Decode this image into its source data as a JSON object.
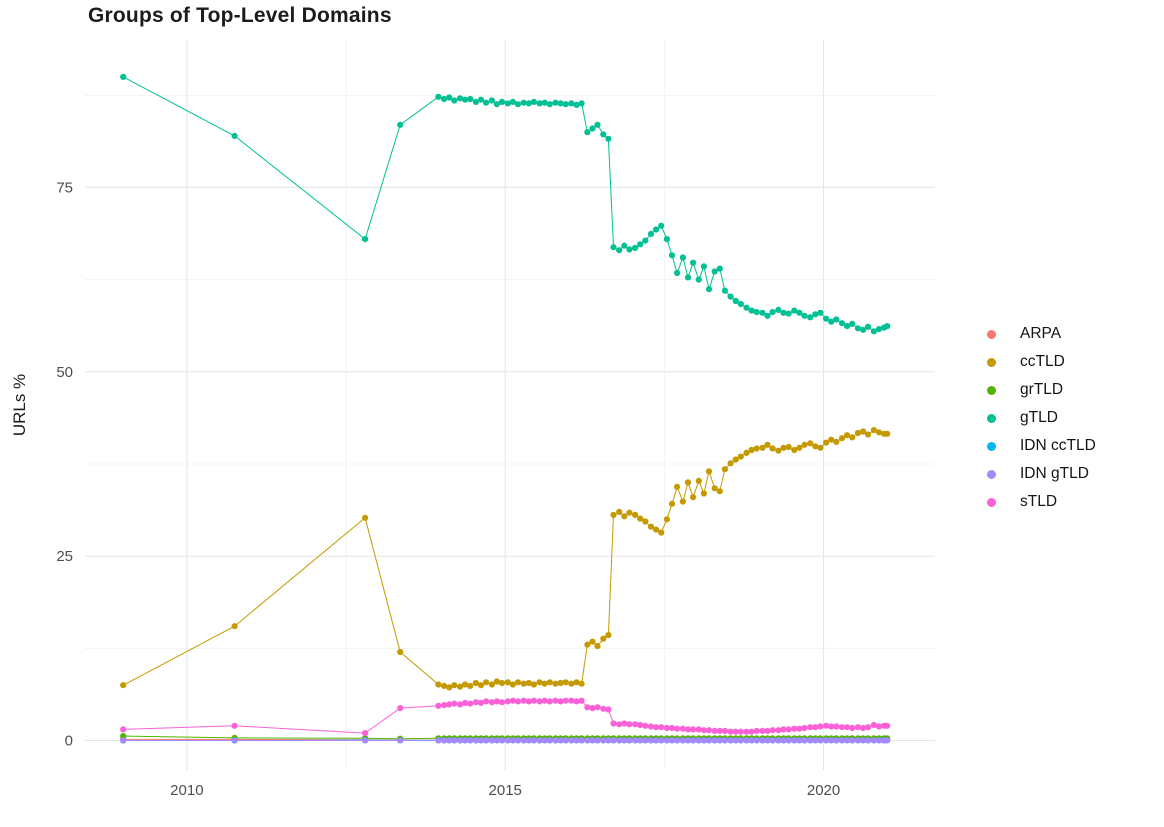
{
  "chart_data": {
    "type": "line",
    "title": "Groups of Top-Level Domains",
    "xlabel": "",
    "ylabel": "URLs %",
    "xlim": [
      2008.4,
      2021.75
    ],
    "ylim": [
      -4,
      95
    ],
    "x_ticks": [
      2010,
      2015,
      2020
    ],
    "x_minor": [
      2012.5,
      2017.5
    ],
    "y_ticks": [
      0,
      25,
      50,
      75
    ],
    "y_minor": [
      12.5,
      37.5,
      62.5,
      87.5
    ],
    "grid": true,
    "legend_position": "right",
    "x": [
      2009.0,
      2010.75,
      2012.8,
      2013.35,
      2013.95,
      2014.04,
      2014.12,
      2014.2,
      2014.29,
      2014.37,
      2014.45,
      2014.54,
      2014.62,
      2014.7,
      2014.79,
      2014.87,
      2014.95,
      2015.04,
      2015.12,
      2015.2,
      2015.29,
      2015.37,
      2015.45,
      2015.54,
      2015.62,
      2015.7,
      2015.79,
      2015.87,
      2015.95,
      2016.04,
      2016.12,
      2016.2,
      2016.29,
      2016.37,
      2016.45,
      2016.54,
      2016.62,
      2016.7,
      2016.79,
      2016.87,
      2016.95,
      2017.04,
      2017.12,
      2017.2,
      2017.29,
      2017.37,
      2017.45,
      2017.54,
      2017.62,
      2017.7,
      2017.79,
      2017.87,
      2017.95,
      2018.04,
      2018.12,
      2018.2,
      2018.29,
      2018.37,
      2018.45,
      2018.54,
      2018.62,
      2018.7,
      2018.79,
      2018.87,
      2018.95,
      2019.04,
      2019.12,
      2019.2,
      2019.29,
      2019.37,
      2019.45,
      2019.54,
      2019.62,
      2019.7,
      2019.79,
      2019.87,
      2019.95,
      2020.04,
      2020.12,
      2020.2,
      2020.29,
      2020.37,
      2020.45,
      2020.54,
      2020.62,
      2020.7,
      2020.79,
      2020.87,
      2020.95,
      2021.0
    ],
    "series": [
      {
        "name": "ARPA",
        "color": "#F8766D",
        "values": [
          0.15,
          0.15,
          0.1,
          0.05,
          0.05,
          0.05,
          0.05,
          0.05,
          0.05,
          0.05,
          0.05,
          0.05,
          0.05,
          0.05,
          0.05,
          0.05,
          0.05,
          0.05,
          0.05,
          0.05,
          0.05,
          0.05,
          0.05,
          0.05,
          0.05,
          0.05,
          0.05,
          0.05,
          0.05,
          0.05,
          0.05,
          0.05,
          0.05,
          0.05,
          0.05,
          0.05,
          0.05,
          0.05,
          0.05,
          0.05,
          0.05,
          0.05,
          0.05,
          0.05,
          0.05,
          0.05,
          0.05,
          0.05,
          0.05,
          0.05,
          0.05,
          0.05,
          0.05,
          0.05,
          0.05,
          0.05,
          0.05,
          0.05,
          0.05,
          0.05,
          0.05,
          0.05,
          0.05,
          0.05,
          0.05,
          0.05,
          0.05,
          0.05,
          0.05,
          0.05,
          0.05,
          0.05,
          0.05,
          0.05,
          0.05,
          0.05,
          0.05,
          0.05,
          0.05,
          0.05,
          0.05,
          0.05,
          0.05,
          0.05,
          0.05,
          0.05,
          0.05,
          0.05,
          0.05,
          0.05
        ]
      },
      {
        "name": "ccTLD",
        "color": "#C49A00",
        "values": [
          7.5,
          15.5,
          30.2,
          12.0,
          7.6,
          7.4,
          7.2,
          7.5,
          7.3,
          7.6,
          7.4,
          7.8,
          7.5,
          7.9,
          7.6,
          8.0,
          7.8,
          7.9,
          7.6,
          7.9,
          7.7,
          7.8,
          7.6,
          7.9,
          7.7,
          7.9,
          7.7,
          7.8,
          7.9,
          7.7,
          7.9,
          7.7,
          13.0,
          13.4,
          12.8,
          13.8,
          14.3,
          30.6,
          31.0,
          30.4,
          30.9,
          30.6,
          30.1,
          29.7,
          29.0,
          28.6,
          28.2,
          30.0,
          32.1,
          34.4,
          32.4,
          35.0,
          33.0,
          35.2,
          33.5,
          36.5,
          34.2,
          33.8,
          36.8,
          37.6,
          38.1,
          38.5,
          39.0,
          39.4,
          39.6,
          39.7,
          40.1,
          39.6,
          39.3,
          39.7,
          39.8,
          39.4,
          39.7,
          40.1,
          40.3,
          39.9,
          39.7,
          40.4,
          40.8,
          40.5,
          41.0,
          41.4,
          41.1,
          41.7,
          41.9,
          41.5,
          42.1,
          41.8,
          41.6,
          41.6
        ]
      },
      {
        "name": "grTLD",
        "color": "#53B400",
        "values": [
          0.6,
          0.35,
          0.3,
          0.25,
          0.3,
          0.3,
          0.3,
          0.3,
          0.3,
          0.3,
          0.3,
          0.3,
          0.3,
          0.3,
          0.3,
          0.3,
          0.3,
          0.3,
          0.3,
          0.3,
          0.3,
          0.3,
          0.3,
          0.3,
          0.3,
          0.3,
          0.3,
          0.3,
          0.3,
          0.3,
          0.3,
          0.3,
          0.3,
          0.3,
          0.3,
          0.3,
          0.3,
          0.3,
          0.3,
          0.3,
          0.3,
          0.3,
          0.3,
          0.3,
          0.3,
          0.3,
          0.3,
          0.3,
          0.3,
          0.3,
          0.3,
          0.3,
          0.3,
          0.3,
          0.3,
          0.3,
          0.3,
          0.3,
          0.3,
          0.3,
          0.3,
          0.3,
          0.3,
          0.3,
          0.3,
          0.3,
          0.3,
          0.3,
          0.3,
          0.3,
          0.3,
          0.3,
          0.3,
          0.3,
          0.3,
          0.3,
          0.3,
          0.3,
          0.3,
          0.3,
          0.3,
          0.3,
          0.3,
          0.3,
          0.3,
          0.3,
          0.3,
          0.3,
          0.3,
          0.3
        ]
      },
      {
        "name": "gTLD",
        "color": "#00C094",
        "values": [
          90,
          82,
          68,
          83.5,
          87.3,
          87.0,
          87.2,
          86.8,
          87.1,
          86.9,
          87.0,
          86.6,
          86.9,
          86.5,
          86.8,
          86.3,
          86.6,
          86.4,
          86.6,
          86.3,
          86.5,
          86.4,
          86.6,
          86.4,
          86.5,
          86.3,
          86.5,
          86.4,
          86.3,
          86.4,
          86.2,
          86.4,
          82.5,
          83.0,
          83.5,
          82.2,
          81.6,
          66.9,
          66.5,
          67.1,
          66.6,
          66.8,
          67.3,
          67.8,
          68.7,
          69.3,
          69.8,
          68.0,
          65.8,
          63.4,
          65.5,
          62.8,
          64.8,
          62.5,
          64.3,
          61.2,
          63.6,
          64.0,
          61.0,
          60.2,
          59.6,
          59.2,
          58.7,
          58.3,
          58.1,
          58.0,
          57.6,
          58.1,
          58.4,
          58.0,
          57.9,
          58.3,
          58.0,
          57.6,
          57.4,
          57.8,
          58.0,
          57.2,
          56.8,
          57.1,
          56.6,
          56.2,
          56.5,
          55.9,
          55.7,
          56.1,
          55.5,
          55.8,
          56.0,
          56.2
        ]
      },
      {
        "name": "IDN ccTLD",
        "color": "#00B6EB",
        "values": [
          0,
          0,
          0.05,
          0.02,
          0.02,
          0.02,
          0.02,
          0.02,
          0.02,
          0.02,
          0.02,
          0.02,
          0.02,
          0.02,
          0.02,
          0.02,
          0.02,
          0.02,
          0.02,
          0.02,
          0.02,
          0.02,
          0.02,
          0.02,
          0.02,
          0.02,
          0.02,
          0.02,
          0.02,
          0.02,
          0.02,
          0.02,
          0.02,
          0.02,
          0.02,
          0.02,
          0.02,
          0.02,
          0.02,
          0.02,
          0.02,
          0.02,
          0.02,
          0.02,
          0.02,
          0.02,
          0.02,
          0.02,
          0.02,
          0.02,
          0.02,
          0.02,
          0.02,
          0.02,
          0.02,
          0.02,
          0.02,
          0.02,
          0.02,
          0.02,
          0.02,
          0.02,
          0.02,
          0.02,
          0.02,
          0.02,
          0.02,
          0.02,
          0.02,
          0.02,
          0.02,
          0.02,
          0.02,
          0.02,
          0.02,
          0.02,
          0.02,
          0.02,
          0.02,
          0.02,
          0.02,
          0.02,
          0.02,
          0.02,
          0.02,
          0.02,
          0.02,
          0.02,
          0.02,
          0.02
        ]
      },
      {
        "name": "IDN gTLD",
        "color": "#A58AFF",
        "values": [
          0,
          0,
          0,
          0.01,
          0.01,
          0.01,
          0.01,
          0.01,
          0.01,
          0.01,
          0.01,
          0.01,
          0.01,
          0.01,
          0.01,
          0.01,
          0.01,
          0.01,
          0.01,
          0.01,
          0.01,
          0.01,
          0.01,
          0.01,
          0.01,
          0.01,
          0.01,
          0.01,
          0.01,
          0.01,
          0.01,
          0.01,
          0.01,
          0.01,
          0.01,
          0.01,
          0.01,
          0.01,
          0.01,
          0.01,
          0.01,
          0.01,
          0.01,
          0.01,
          0.01,
          0.01,
          0.01,
          0.01,
          0.01,
          0.01,
          0.01,
          0.01,
          0.01,
          0.01,
          0.01,
          0.01,
          0.01,
          0.01,
          0.01,
          0.01,
          0.01,
          0.01,
          0.01,
          0.01,
          0.01,
          0.01,
          0.01,
          0.01,
          0.01,
          0.01,
          0.01,
          0.01,
          0.01,
          0.01,
          0.01,
          0.01,
          0.01,
          0.01,
          0.01,
          0.01,
          0.01,
          0.01,
          0.01,
          0.01,
          0.01,
          0.01,
          0.01,
          0.01,
          0.01,
          0.01
        ]
      },
      {
        "name": "sTLD",
        "color": "#FB61D7",
        "values": [
          1.5,
          2.0,
          1.0,
          4.4,
          4.7,
          4.8,
          4.9,
          5.0,
          4.9,
          5.1,
          5.0,
          5.2,
          5.1,
          5.3,
          5.2,
          5.3,
          5.2,
          5.3,
          5.4,
          5.3,
          5.4,
          5.3,
          5.4,
          5.3,
          5.4,
          5.3,
          5.4,
          5.3,
          5.4,
          5.4,
          5.3,
          5.4,
          4.5,
          4.4,
          4.5,
          4.3,
          4.2,
          2.3,
          2.2,
          2.3,
          2.2,
          2.2,
          2.1,
          2.0,
          1.9,
          1.8,
          1.8,
          1.7,
          1.7,
          1.6,
          1.6,
          1.5,
          1.5,
          1.5,
          1.4,
          1.4,
          1.3,
          1.3,
          1.3,
          1.2,
          1.2,
          1.2,
          1.2,
          1.2,
          1.3,
          1.3,
          1.3,
          1.4,
          1.4,
          1.5,
          1.5,
          1.6,
          1.6,
          1.7,
          1.8,
          1.8,
          1.9,
          2.0,
          1.9,
          1.9,
          1.8,
          1.8,
          1.7,
          1.8,
          1.7,
          1.8,
          2.1,
          1.9,
          2.0,
          2.0
        ]
      }
    ]
  }
}
